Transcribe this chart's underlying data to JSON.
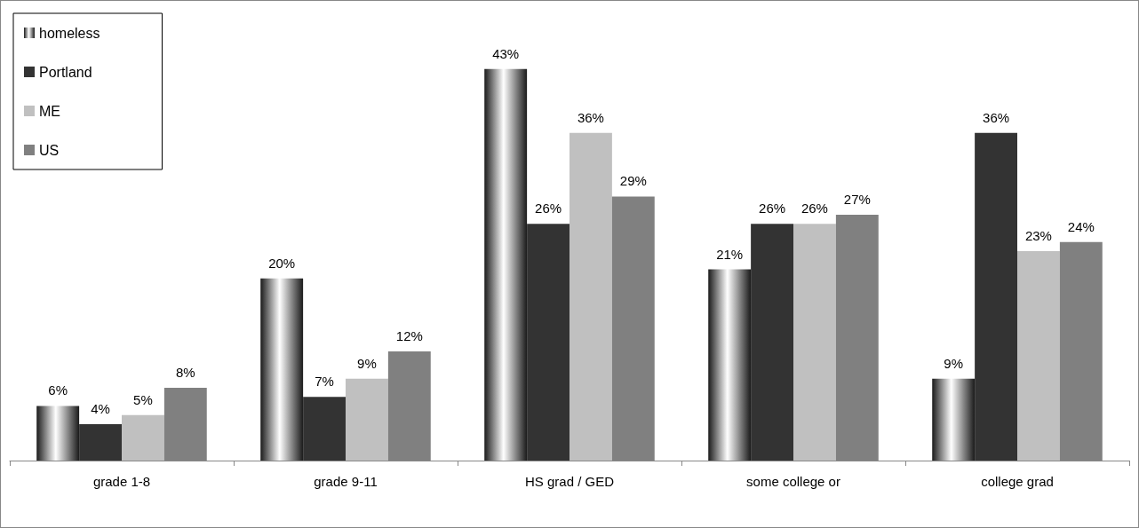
{
  "chart_data": {
    "type": "bar",
    "categories": [
      "grade 1-8",
      "grade 9-11",
      "HS grad / GED",
      "some college or",
      "college grad"
    ],
    "series": [
      {
        "name": "homeless",
        "color": "#1a1a1a",
        "values": [
          6,
          20,
          43,
          21,
          9
        ],
        "value_labels": [
          "6%",
          "20%",
          "43%",
          "21%",
          "9%"
        ]
      },
      {
        "name": "Portland",
        "color": "#333333",
        "values": [
          4,
          7,
          26,
          26,
          36
        ],
        "value_labels": [
          "4%",
          "7%",
          "26%",
          "26%",
          "36%"
        ]
      },
      {
        "name": "ME",
        "color": "#c0c0c0",
        "values": [
          5,
          9,
          36,
          26,
          23
        ],
        "value_labels": [
          "5%",
          "9%",
          "36%",
          "26%",
          "23%"
        ]
      },
      {
        "name": "US",
        "color": "#808080",
        "values": [
          8,
          12,
          29,
          27,
          24
        ],
        "value_labels": [
          "8%",
          "12%",
          "29%",
          "27%",
          "24%"
        ]
      }
    ],
    "grid": false,
    "legend": "top left"
  }
}
